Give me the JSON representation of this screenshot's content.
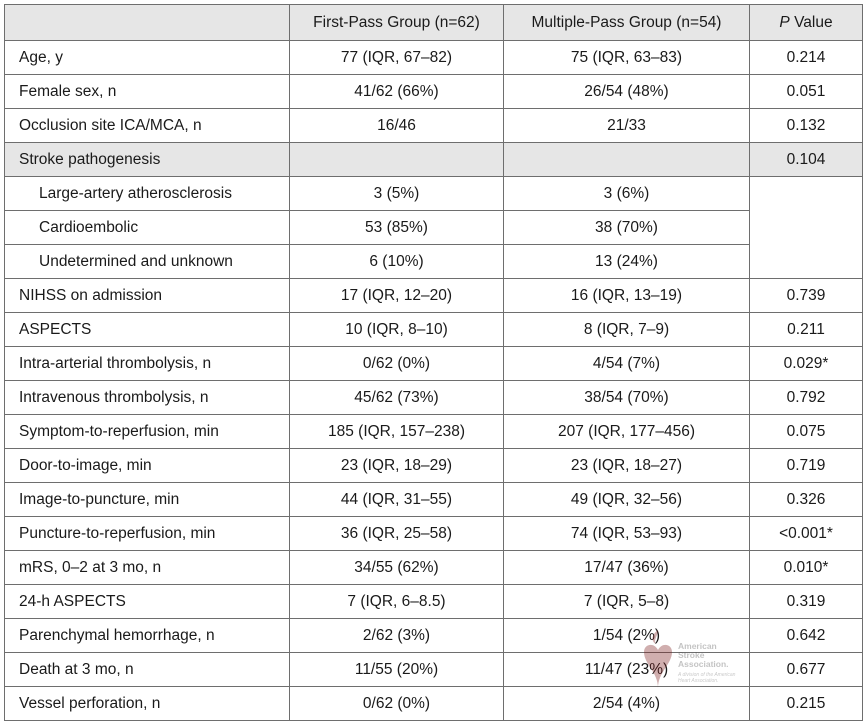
{
  "table": {
    "headers": {
      "col0": "",
      "col1": "First-Pass Group (n=62)",
      "col2": "Multiple-Pass Group (n=54)",
      "col3_italic": "P",
      "col3_rest": " Value"
    },
    "rows": [
      {
        "label": "Age, y",
        "first": "77 (IQR, 67–82)",
        "multi": "75 (IQR, 63–83)",
        "p": "0.214"
      },
      {
        "label": "Female sex, n",
        "first": "41/62 (66%)",
        "multi": "26/54 (48%)",
        "p": "0.051"
      },
      {
        "label": "Occlusion site ICA/MCA, n",
        "first": "16/46",
        "multi": "21/33",
        "p": "0.132"
      },
      {
        "label": "Stroke pathogenesis",
        "first": "",
        "multi": "",
        "p": "0.104"
      },
      {
        "label": "Large-artery atherosclerosis",
        "first": "3 (5%)",
        "multi": "3 (6%)"
      },
      {
        "label": "Cardioembolic",
        "first": "53 (85%)",
        "multi": "38 (70%)"
      },
      {
        "label": "Undetermined and unknown",
        "first": "6 (10%)",
        "multi": "13 (24%)"
      },
      {
        "label": "NIHSS on admission",
        "first": "17 (IQR, 12–20)",
        "multi": "16 (IQR, 13–19)",
        "p": "0.739"
      },
      {
        "label": "ASPECTS",
        "first": "10 (IQR, 8–10)",
        "multi": "8 (IQR, 7–9)",
        "p": "0.211"
      },
      {
        "label": "Intra-arterial thrombolysis, n",
        "first": "0/62 (0%)",
        "multi": "4/54 (7%)",
        "p": "0.029*"
      },
      {
        "label": "Intravenous thrombolysis, n",
        "first": "45/62 (73%)",
        "multi": "38/54 (70%)",
        "p": "0.792"
      },
      {
        "label": "Symptom-to-reperfusion, min",
        "first": "185 (IQR, 157–238)",
        "multi": "207 (IQR, 177–456)",
        "p": "0.075"
      },
      {
        "label": "Door-to-image, min",
        "first": "23 (IQR, 18–29)",
        "multi": "23 (IQR, 18–27)",
        "p": "0.719"
      },
      {
        "label": "Image-to-puncture, min",
        "first": "44 (IQR, 31–55)",
        "multi": "49 (IQR, 32–56)",
        "p": "0.326"
      },
      {
        "label": "Puncture-to-reperfusion, min",
        "first": "36 (IQR, 25–58)",
        "multi": "74 (IQR, 53–93)",
        "p": "<0.001*"
      },
      {
        "label": "mRS, 0–2 at 3 mo, n",
        "first": "34/55 (62%)",
        "multi": "17/47 (36%)",
        "p": "0.010*"
      },
      {
        "label": "24-h ASPECTS",
        "first": "7 (IQR, 6–8.5)",
        "multi": "7 (IQR, 5–8)",
        "p": "0.319"
      },
      {
        "label": "Parenchymal hemorrhage, n",
        "first": "2/62 (3%)",
        "multi": "1/54 (2%)",
        "p": "0.642"
      },
      {
        "label": "Death at 3 mo, n",
        "first": "11/55 (20%)",
        "multi": "11/47 (23%)",
        "p": "0.677"
      },
      {
        "label": "Vessel perforation, n",
        "first": "0/62 (0%)",
        "multi": "2/54 (4%)",
        "p": "0.215"
      }
    ]
  },
  "watermark": {
    "logo_icon": "heart-torch-icon",
    "logo_line1": "American",
    "logo_line2": "Stroke",
    "logo_line3": "Association.",
    "logo_sub": "A division of the American Heart Association."
  }
}
